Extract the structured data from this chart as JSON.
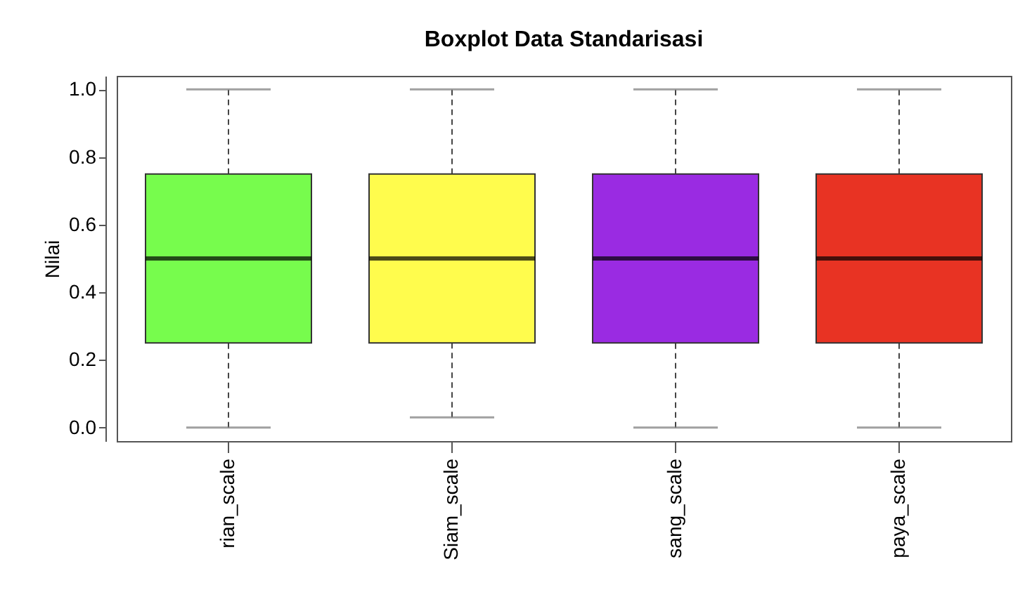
{
  "chart_data": {
    "type": "box",
    "title": "Boxplot Data Standarisasi",
    "ylabel": "Nilai",
    "categories": [
      "rian_scale",
      "Siam_scale",
      "sang_scale",
      "paya_scale"
    ],
    "colors": [
      "#77fc4d",
      "#fffc4d",
      "#9a2be2",
      "#e83323"
    ],
    "boxes": [
      {
        "low": 0,
        "q1": 0.25,
        "median": 0.5,
        "q3": 0.75,
        "high": 1
      },
      {
        "low": 0.03,
        "q1": 0.25,
        "median": 0.5,
        "q3": 0.75,
        "high": 1
      },
      {
        "low": 0,
        "q1": 0.25,
        "median": 0.5,
        "q3": 0.75,
        "high": 1
      },
      {
        "low": 0,
        "q1": 0.25,
        "median": 0.5,
        "q3": 0.75,
        "high": 1
      }
    ],
    "ylim": [
      -0.04,
      1.04
    ],
    "yticks": [
      {
        "value": 0,
        "label": "0.0"
      },
      0.2,
      0.4,
      0.6,
      0.8,
      {
        "value": 1,
        "label": "1.0"
      }
    ],
    "grid": false
  }
}
